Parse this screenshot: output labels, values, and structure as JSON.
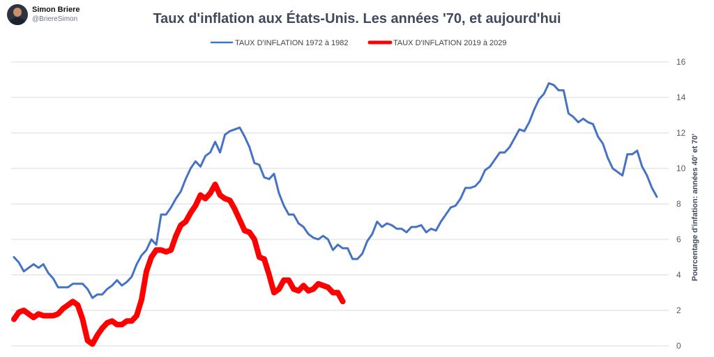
{
  "author": {
    "name": "Simon Briere",
    "handle": "@BriereSimon"
  },
  "chart_data": {
    "type": "line",
    "title": "Taux d'inflation aux États-Unis. Les années '70, et aujourd'hui",
    "ylabel": "Pourcentage d'infation: années 40' et 70'",
    "xlabel": "",
    "ylim": [
      0,
      16
    ],
    "yticks": [
      0,
      2,
      4,
      6,
      8,
      10,
      12,
      14,
      16
    ],
    "grid": "horizontal",
    "legend_position": "top",
    "y_axis_side": "right",
    "series": [
      {
        "name": "TAUX D'INFLATION 1972 à 1982",
        "color": "#4472c4",
        "values": [
          5.0,
          4.7,
          4.2,
          4.4,
          4.6,
          4.4,
          4.6,
          4.1,
          3.8,
          3.3,
          3.3,
          3.3,
          3.5,
          3.5,
          3.5,
          3.2,
          2.7,
          2.9,
          2.9,
          3.2,
          3.4,
          3.7,
          3.4,
          3.6,
          3.9,
          4.6,
          5.1,
          5.4,
          6.0,
          5.7,
          7.4,
          7.4,
          7.8,
          8.3,
          8.7,
          9.4,
          10.0,
          10.4,
          10.1,
          10.7,
          10.9,
          11.5,
          10.9,
          11.9,
          12.1,
          12.2,
          12.3,
          11.8,
          11.2,
          10.3,
          10.2,
          9.5,
          9.4,
          9.7,
          8.6,
          7.9,
          7.4,
          7.4,
          6.9,
          6.7,
          6.3,
          6.1,
          6.0,
          6.2,
          6.0,
          5.4,
          5.7,
          5.5,
          5.5,
          4.9,
          4.9,
          5.2,
          5.9,
          6.3,
          7.0,
          6.7,
          6.9,
          6.8,
          6.6,
          6.6,
          6.4,
          6.7,
          6.7,
          6.8,
          6.4,
          6.6,
          6.5,
          7.0,
          7.4,
          7.8,
          7.9,
          8.3,
          8.9,
          8.9,
          9.0,
          9.3,
          9.9,
          10.1,
          10.5,
          10.9,
          10.9,
          11.2,
          11.7,
          12.2,
          12.1,
          12.6,
          13.3,
          13.9,
          14.2,
          14.8,
          14.7,
          14.4,
          14.4,
          13.1,
          12.9,
          12.6,
          12.8,
          12.6,
          12.5,
          11.8,
          11.4,
          10.6,
          10.0,
          9.8,
          9.6,
          10.8,
          10.8,
          11.0,
          10.1,
          9.6,
          8.9,
          8.4
        ]
      },
      {
        "name": "TAUX D'INFLATION  2019 à 2029",
        "color": "#ff0000",
        "values": [
          1.5,
          1.9,
          2.0,
          1.8,
          1.6,
          1.8,
          1.7,
          1.7,
          1.7,
          1.8,
          2.1,
          2.3,
          2.5,
          2.3,
          1.5,
          0.3,
          0.1,
          0.6,
          1.0,
          1.3,
          1.4,
          1.2,
          1.2,
          1.4,
          1.4,
          1.7,
          2.6,
          4.2,
          5.0,
          5.4,
          5.4,
          5.3,
          5.4,
          6.2,
          6.8,
          7.0,
          7.5,
          7.9,
          8.5,
          8.3,
          8.6,
          9.1,
          8.5,
          8.3,
          8.2,
          7.7,
          7.1,
          6.5,
          6.4,
          6.0,
          5.0,
          4.9,
          4.0,
          3.0,
          3.2,
          3.7,
          3.7,
          3.2,
          3.1,
          3.4,
          3.1,
          3.2,
          3.5,
          3.4,
          3.3,
          3.0,
          3.0,
          2.5
        ]
      }
    ]
  }
}
